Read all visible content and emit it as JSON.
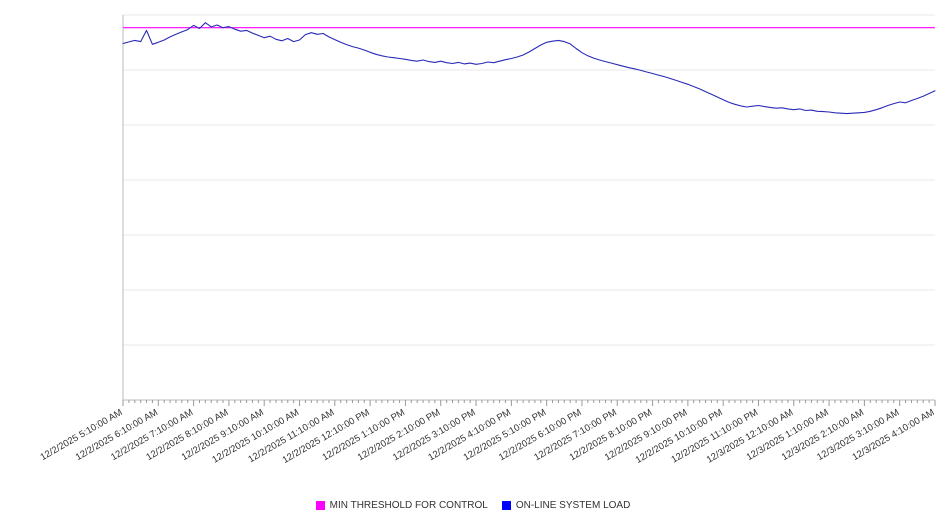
{
  "chart_data": {
    "type": "line",
    "title": "",
    "xlabel": "",
    "ylabel": "",
    "ylim": [
      0,
      100
    ],
    "grid": "horizontal",
    "grid_divisions": 7,
    "legend_position": "bottom",
    "x_labels": [
      "12/2/2025 5:10:00 AM",
      "12/2/2025 6:10:00 AM",
      "12/2/2025 7:10:00 AM",
      "12/2/2025 8:10:00 AM",
      "12/2/2025 9:10:00 AM",
      "12/2/2025 10:10:00 AM",
      "12/2/2025 11:10:00 AM",
      "12/2/2025 12:10:00 PM",
      "12/2/2025 1:10:00 PM",
      "12/2/2025 2:10:00 PM",
      "12/2/2025 3:10:00 PM",
      "12/2/2025 4:10:00 PM",
      "12/2/2025 5:10:00 PM",
      "12/2/2025 6:10:00 PM",
      "12/2/2025 7:10:00 PM",
      "12/2/2025 8:10:00 PM",
      "12/2/2025 9:10:00 PM",
      "12/2/2025 10:10:00 PM",
      "12/2/2025 11:10:00 PM",
      "12/3/2025 12:10:00 AM",
      "12/3/2025 1:10:00 AM",
      "12/3/2025 2:10:00 AM",
      "12/3/2025 3:10:00 AM",
      "12/3/2025 4:10:00 AM"
    ],
    "points_per_hour": 6,
    "series": [
      {
        "name": "MIN THRESHOLD FOR CONTROL",
        "type": "threshold",
        "color": "#ff00ff",
        "value": 96.7
      },
      {
        "name": "ON-LINE SYSTEM LOAD",
        "type": "line",
        "color": "#2a2ab8",
        "values": [
          92.6,
          93.0,
          93.4,
          93.1,
          96.0,
          92.4,
          92.9,
          93.5,
          94.3,
          95.0,
          95.6,
          96.2,
          97.3,
          96.5,
          98.0,
          96.9,
          97.4,
          96.7,
          97.0,
          96.3,
          95.8,
          96.0,
          95.3,
          94.7,
          94.1,
          94.5,
          93.7,
          93.3,
          93.9,
          93.1,
          93.5,
          94.9,
          95.4,
          95.0,
          95.2,
          94.3,
          93.6,
          92.9,
          92.3,
          91.8,
          91.4,
          90.9,
          90.3,
          89.8,
          89.4,
          89.1,
          88.9,
          88.7,
          88.5,
          88.2,
          88.0,
          88.3,
          87.9,
          87.7,
          88.0,
          87.6,
          87.4,
          87.7,
          87.3,
          87.5,
          87.2,
          87.4,
          87.8,
          87.6,
          88.0,
          88.4,
          88.7,
          89.1,
          89.6,
          90.4,
          91.3,
          92.2,
          92.9,
          93.2,
          93.4,
          93.1,
          92.5,
          91.3,
          90.2,
          89.4,
          88.8,
          88.3,
          87.9,
          87.5,
          87.1,
          86.7,
          86.3,
          86.0,
          85.6,
          85.2,
          84.8,
          84.4,
          84.0,
          83.5,
          83.0,
          82.5,
          82.0,
          81.4,
          80.8,
          80.1,
          79.4,
          78.7,
          78.0,
          77.3,
          76.8,
          76.4,
          76.1,
          76.3,
          76.5,
          76.2,
          76.0,
          75.8,
          75.9,
          75.6,
          75.4,
          75.6,
          75.2,
          75.3,
          75.0,
          74.9,
          74.8,
          74.6,
          74.5,
          74.4,
          74.5,
          74.6,
          74.7,
          75.0,
          75.4,
          75.9,
          76.5,
          77.0,
          77.4,
          77.2,
          77.8,
          78.3,
          78.9,
          79.6,
          80.3
        ]
      }
    ]
  },
  "legend": {
    "items": [
      {
        "label": "MIN THRESHOLD FOR CONTROL",
        "color": "#ff00ff"
      },
      {
        "label": "ON-LINE SYSTEM LOAD",
        "color": "#0000ff"
      }
    ]
  },
  "colors": {
    "gridline": "#e8e8e8",
    "axis": "#bbbbbb",
    "tick": "#999999",
    "tick_label": "#333333"
  }
}
